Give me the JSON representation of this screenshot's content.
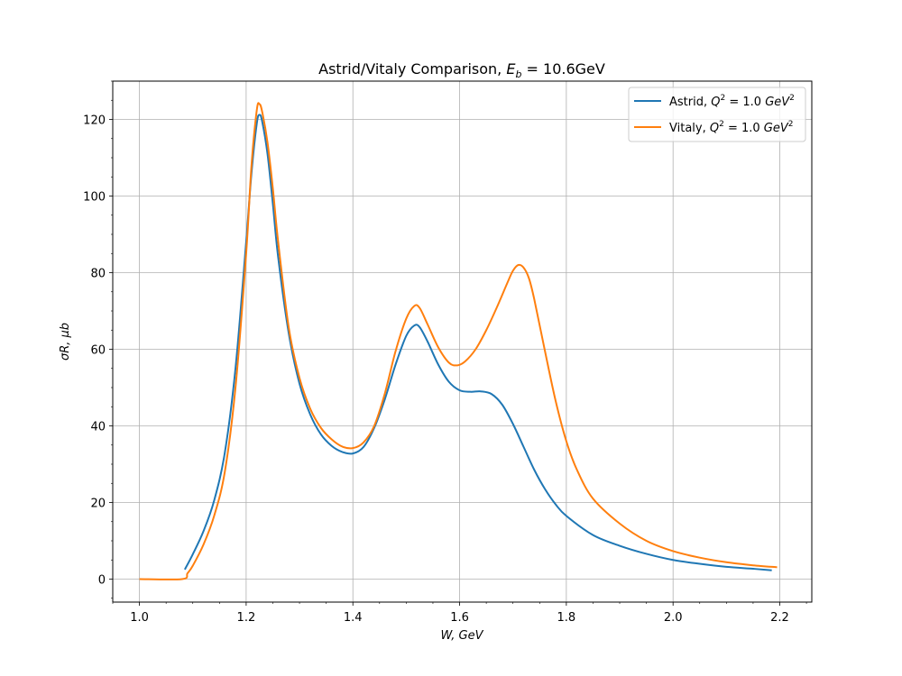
{
  "chart_data": {
    "type": "line",
    "title": "Astrid/Vitaly Comparison, E_b = 10.6GeV",
    "title_parts": {
      "prefix": "Astrid/Vitaly Comparison, ",
      "symbol": "E",
      "sub": "b",
      "suffix": " = 10.6GeV"
    },
    "xlabel": "W, GeV",
    "ylabel": "σR, μb",
    "xlim": [
      0.95,
      2.26
    ],
    "ylim": [
      -6,
      130
    ],
    "xticks": [
      1.0,
      1.2,
      1.4,
      1.6,
      1.8,
      2.0,
      2.2
    ],
    "xtick_labels": [
      "1.0",
      "1.2",
      "1.4",
      "1.6",
      "1.8",
      "2.0",
      "2.2"
    ],
    "yticks": [
      0,
      20,
      40,
      60,
      80,
      100,
      120
    ],
    "ytick_labels": [
      "0",
      "20",
      "40",
      "60",
      "80",
      "100",
      "120"
    ],
    "grid": true,
    "legend_position": "top-right",
    "series": [
      {
        "name": "Astrid, Q² = 1.0 GeV²",
        "legend_prefix": "Astrid, ",
        "color": "#1f77b4",
        "points": [
          [
            1.085,
            2.5
          ],
          [
            1.1,
            6.5
          ],
          [
            1.12,
            12.5
          ],
          [
            1.14,
            20.5
          ],
          [
            1.16,
            33.0
          ],
          [
            1.18,
            55.0
          ],
          [
            1.2,
            88.0
          ],
          [
            1.21,
            106.0
          ],
          [
            1.22,
            119.0
          ],
          [
            1.225,
            121.2
          ],
          [
            1.23,
            119.5
          ],
          [
            1.24,
            111.0
          ],
          [
            1.25,
            98.0
          ],
          [
            1.26,
            84.0
          ],
          [
            1.28,
            64.0
          ],
          [
            1.3,
            51.0
          ],
          [
            1.32,
            43.0
          ],
          [
            1.34,
            37.8
          ],
          [
            1.36,
            34.8
          ],
          [
            1.38,
            33.2
          ],
          [
            1.4,
            32.8
          ],
          [
            1.42,
            34.5
          ],
          [
            1.44,
            39.5
          ],
          [
            1.46,
            47.0
          ],
          [
            1.48,
            56.0
          ],
          [
            1.5,
            63.5
          ],
          [
            1.515,
            66.2
          ],
          [
            1.525,
            65.8
          ],
          [
            1.54,
            62.0
          ],
          [
            1.56,
            56.0
          ],
          [
            1.58,
            51.5
          ],
          [
            1.6,
            49.3
          ],
          [
            1.62,
            48.9
          ],
          [
            1.64,
            49.0
          ],
          [
            1.66,
            48.3
          ],
          [
            1.68,
            45.5
          ],
          [
            1.7,
            40.5
          ],
          [
            1.72,
            34.5
          ],
          [
            1.74,
            28.5
          ],
          [
            1.76,
            23.5
          ],
          [
            1.78,
            19.5
          ],
          [
            1.8,
            16.5
          ],
          [
            1.85,
            11.5
          ],
          [
            1.9,
            8.7
          ],
          [
            1.95,
            6.6
          ],
          [
            2.0,
            5.0
          ],
          [
            2.05,
            4.0
          ],
          [
            2.1,
            3.2
          ],
          [
            2.15,
            2.7
          ],
          [
            2.185,
            2.3
          ]
        ]
      },
      {
        "name": "Vitaly, Q² = 1.0 GeV²",
        "legend_prefix": "Vitaly, ",
        "color": "#ff7f0e",
        "points": [
          [
            1.0,
            0.0
          ],
          [
            1.08,
            0.0
          ],
          [
            1.09,
            1.5
          ],
          [
            1.1,
            3.5
          ],
          [
            1.12,
            9.0
          ],
          [
            1.14,
            16.5
          ],
          [
            1.16,
            28.0
          ],
          [
            1.18,
            50.0
          ],
          [
            1.2,
            85.0
          ],
          [
            1.21,
            108.0
          ],
          [
            1.22,
            122.5
          ],
          [
            1.225,
            124.0
          ],
          [
            1.23,
            122.0
          ],
          [
            1.24,
            114.0
          ],
          [
            1.25,
            102.0
          ],
          [
            1.26,
            88.0
          ],
          [
            1.28,
            65.5
          ],
          [
            1.3,
            52.5
          ],
          [
            1.32,
            44.5
          ],
          [
            1.34,
            39.5
          ],
          [
            1.36,
            36.5
          ],
          [
            1.38,
            34.6
          ],
          [
            1.4,
            34.2
          ],
          [
            1.42,
            35.7
          ],
          [
            1.44,
            40.0
          ],
          [
            1.46,
            48.5
          ],
          [
            1.48,
            59.5
          ],
          [
            1.5,
            68.0
          ],
          [
            1.515,
            71.3
          ],
          [
            1.525,
            70.8
          ],
          [
            1.54,
            66.5
          ],
          [
            1.56,
            60.5
          ],
          [
            1.58,
            56.5
          ],
          [
            1.595,
            55.8
          ],
          [
            1.61,
            56.8
          ],
          [
            1.63,
            60.0
          ],
          [
            1.65,
            65.0
          ],
          [
            1.67,
            71.0
          ],
          [
            1.69,
            77.5
          ],
          [
            1.7,
            80.5
          ],
          [
            1.71,
            82.0
          ],
          [
            1.72,
            81.3
          ],
          [
            1.73,
            78.5
          ],
          [
            1.74,
            73.0
          ],
          [
            1.76,
            59.5
          ],
          [
            1.78,
            46.5
          ],
          [
            1.8,
            36.0
          ],
          [
            1.82,
            28.5
          ],
          [
            1.85,
            21.0
          ],
          [
            1.9,
            14.5
          ],
          [
            1.95,
            10.0
          ],
          [
            2.0,
            7.3
          ],
          [
            2.05,
            5.6
          ],
          [
            2.1,
            4.4
          ],
          [
            2.15,
            3.6
          ],
          [
            2.195,
            3.1
          ]
        ]
      }
    ]
  }
}
